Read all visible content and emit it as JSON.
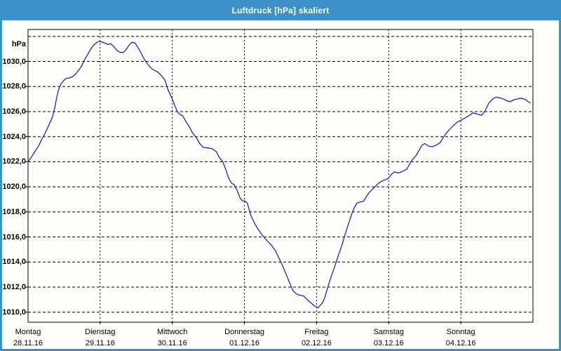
{
  "window": {
    "title": "Luftdruck [hPa] skaliert"
  },
  "colors": {
    "frame": "#3b91c8",
    "titlebar": "#3b91c8",
    "title_text": "#ffffff",
    "content_bg": "#fcfffa",
    "grid": "#000000",
    "axis": "#000000",
    "series_line": "#2121c3",
    "label_text": "#000000"
  },
  "axes": {
    "unit_label": "hPa",
    "y_ticks": [
      {
        "value": 1032,
        "label": ""
      },
      {
        "value": 1030,
        "label": "1030,0"
      },
      {
        "value": 1028,
        "label": "1028,0"
      },
      {
        "value": 1026,
        "label": "1026,0"
      },
      {
        "value": 1024,
        "label": "1024,0"
      },
      {
        "value": 1022,
        "label": "1022,0"
      },
      {
        "value": 1020,
        "label": "1020,0"
      },
      {
        "value": 1018,
        "label": "1018,0"
      },
      {
        "value": 1016,
        "label": "1016,0"
      },
      {
        "value": 1014,
        "label": "1014,0"
      },
      {
        "value": 1012,
        "label": "1012,0"
      },
      {
        "value": 1010,
        "label": "1010,0"
      }
    ],
    "x_days": [
      {
        "name": "Montag",
        "date": "28.11.16"
      },
      {
        "name": "Dienstag",
        "date": "29.11.16"
      },
      {
        "name": "Mittwoch",
        "date": "30.11.16"
      },
      {
        "name": "Donnerstag",
        "date": "01.12.16"
      },
      {
        "name": "Freitag",
        "date": "02.12.16"
      },
      {
        "name": "Samstag",
        "date": "03.12.16"
      },
      {
        "name": "Sonntag",
        "date": "04.12.16"
      }
    ]
  },
  "chart_data": {
    "type": "line",
    "title": "Luftdruck [hPa] skaliert",
    "ylabel": "hPa",
    "xlabel": "",
    "x_unit": "days since Montag 28.11.16 00:00",
    "ylim": [
      1009.2,
      1032.55
    ],
    "xlim_days": [
      0,
      7
    ],
    "y_gridline_step_hpa": 2,
    "vertical_gridlines": "daily at midnight, dashed",
    "grid": "on, black dashed",
    "legend_position": "none",
    "series": [
      {
        "name": "Luftdruck",
        "color": "#2121c3",
        "points_t_days_hpa": [
          [
            0.0,
            1022.0
          ],
          [
            0.05,
            1022.4
          ],
          [
            0.1,
            1022.85
          ],
          [
            0.15,
            1023.3
          ],
          [
            0.19,
            1023.8
          ],
          [
            0.23,
            1024.2
          ],
          [
            0.27,
            1024.7
          ],
          [
            0.31,
            1025.2
          ],
          [
            0.34,
            1025.6
          ],
          [
            0.37,
            1026.3
          ],
          [
            0.39,
            1026.9
          ],
          [
            0.42,
            1027.7
          ],
          [
            0.46,
            1028.25
          ],
          [
            0.5,
            1028.5
          ],
          [
            0.53,
            1028.65
          ],
          [
            0.58,
            1028.7
          ],
          [
            0.62,
            1028.8
          ],
          [
            0.66,
            1029.0
          ],
          [
            0.7,
            1029.3
          ],
          [
            0.74,
            1029.6
          ],
          [
            0.78,
            1030.1
          ],
          [
            0.83,
            1030.6
          ],
          [
            0.87,
            1031.0
          ],
          [
            0.91,
            1031.3
          ],
          [
            0.95,
            1031.5
          ],
          [
            0.98,
            1031.6
          ],
          [
            1.03,
            1031.55
          ],
          [
            1.07,
            1031.45
          ],
          [
            1.11,
            1031.35
          ],
          [
            1.14,
            1031.42
          ],
          [
            1.17,
            1031.3
          ],
          [
            1.21,
            1031.05
          ],
          [
            1.24,
            1030.85
          ],
          [
            1.28,
            1030.72
          ],
          [
            1.32,
            1030.72
          ],
          [
            1.36,
            1030.95
          ],
          [
            1.4,
            1031.3
          ],
          [
            1.44,
            1031.52
          ],
          [
            1.48,
            1031.5
          ],
          [
            1.52,
            1031.15
          ],
          [
            1.56,
            1030.75
          ],
          [
            1.59,
            1030.4
          ],
          [
            1.63,
            1030.0
          ],
          [
            1.67,
            1029.7
          ],
          [
            1.71,
            1029.45
          ],
          [
            1.75,
            1029.3
          ],
          [
            1.8,
            1029.15
          ],
          [
            1.85,
            1028.85
          ],
          [
            1.9,
            1028.5
          ],
          [
            1.94,
            1027.75
          ],
          [
            2.0,
            1027.0
          ],
          [
            2.04,
            1026.4
          ],
          [
            2.07,
            1026.0
          ],
          [
            2.11,
            1025.75
          ],
          [
            2.14,
            1025.7
          ],
          [
            2.19,
            1025.2
          ],
          [
            2.24,
            1024.75
          ],
          [
            2.28,
            1024.3
          ],
          [
            2.33,
            1023.95
          ],
          [
            2.38,
            1023.45
          ],
          [
            2.43,
            1023.15
          ],
          [
            2.49,
            1023.1
          ],
          [
            2.55,
            1023.05
          ],
          [
            2.61,
            1022.8
          ],
          [
            2.65,
            1022.35
          ],
          [
            2.7,
            1022.0
          ],
          [
            2.74,
            1021.4
          ],
          [
            2.78,
            1020.7
          ],
          [
            2.82,
            1020.3
          ],
          [
            2.86,
            1020.15
          ],
          [
            2.9,
            1019.7
          ],
          [
            2.94,
            1019.1
          ],
          [
            2.97,
            1018.9
          ],
          [
            3.01,
            1018.85
          ],
          [
            3.04,
            1018.7
          ],
          [
            3.09,
            1017.7
          ],
          [
            3.14,
            1017.1
          ],
          [
            3.19,
            1016.6
          ],
          [
            3.24,
            1016.2
          ],
          [
            3.29,
            1015.85
          ],
          [
            3.33,
            1015.6
          ],
          [
            3.38,
            1015.3
          ],
          [
            3.43,
            1014.9
          ],
          [
            3.48,
            1014.3
          ],
          [
            3.53,
            1013.7
          ],
          [
            3.58,
            1013.0
          ],
          [
            3.63,
            1012.3
          ],
          [
            3.67,
            1011.75
          ],
          [
            3.72,
            1011.45
          ],
          [
            3.77,
            1011.35
          ],
          [
            3.82,
            1011.3
          ],
          [
            3.87,
            1011.0
          ],
          [
            3.92,
            1010.75
          ],
          [
            3.96,
            1010.55
          ],
          [
            4.0,
            1010.4
          ],
          [
            4.02,
            1010.35
          ],
          [
            4.05,
            1010.55
          ],
          [
            4.08,
            1010.75
          ],
          [
            4.11,
            1011.1
          ],
          [
            4.15,
            1011.9
          ],
          [
            4.2,
            1012.8
          ],
          [
            4.25,
            1013.6
          ],
          [
            4.3,
            1014.5
          ],
          [
            4.35,
            1015.3
          ],
          [
            4.39,
            1016.1
          ],
          [
            4.44,
            1017.0
          ],
          [
            4.48,
            1017.7
          ],
          [
            4.52,
            1018.3
          ],
          [
            4.56,
            1018.7
          ],
          [
            4.61,
            1018.8
          ],
          [
            4.65,
            1018.85
          ],
          [
            4.69,
            1019.2
          ],
          [
            4.73,
            1019.55
          ],
          [
            4.79,
            1019.9
          ],
          [
            4.86,
            1020.3
          ],
          [
            4.92,
            1020.5
          ],
          [
            4.99,
            1020.65
          ],
          [
            5.04,
            1021.0
          ],
          [
            5.08,
            1021.2
          ],
          [
            5.13,
            1021.1
          ],
          [
            5.18,
            1021.2
          ],
          [
            5.25,
            1021.4
          ],
          [
            5.32,
            1022.1
          ],
          [
            5.38,
            1022.5
          ],
          [
            5.42,
            1022.9
          ],
          [
            5.46,
            1023.3
          ],
          [
            5.5,
            1023.45
          ],
          [
            5.55,
            1023.25
          ],
          [
            5.6,
            1023.2
          ],
          [
            5.65,
            1023.3
          ],
          [
            5.71,
            1023.5
          ],
          [
            5.77,
            1024.05
          ],
          [
            5.83,
            1024.5
          ],
          [
            5.9,
            1024.9
          ],
          [
            5.96,
            1025.2
          ],
          [
            6.0,
            1025.3
          ],
          [
            6.06,
            1025.5
          ],
          [
            6.12,
            1025.7
          ],
          [
            6.17,
            1025.9
          ],
          [
            6.23,
            1025.8
          ],
          [
            6.29,
            1025.7
          ],
          [
            6.34,
            1026.1
          ],
          [
            6.39,
            1026.7
          ],
          [
            6.45,
            1027.05
          ],
          [
            6.49,
            1027.15
          ],
          [
            6.54,
            1027.1
          ],
          [
            6.59,
            1027.0
          ],
          [
            6.64,
            1026.85
          ],
          [
            6.69,
            1026.8
          ],
          [
            6.74,
            1026.95
          ],
          [
            6.81,
            1027.05
          ],
          [
            6.85,
            1027.05
          ],
          [
            6.9,
            1026.95
          ],
          [
            6.93,
            1026.8
          ],
          [
            6.96,
            1026.7
          ]
        ]
      }
    ]
  }
}
